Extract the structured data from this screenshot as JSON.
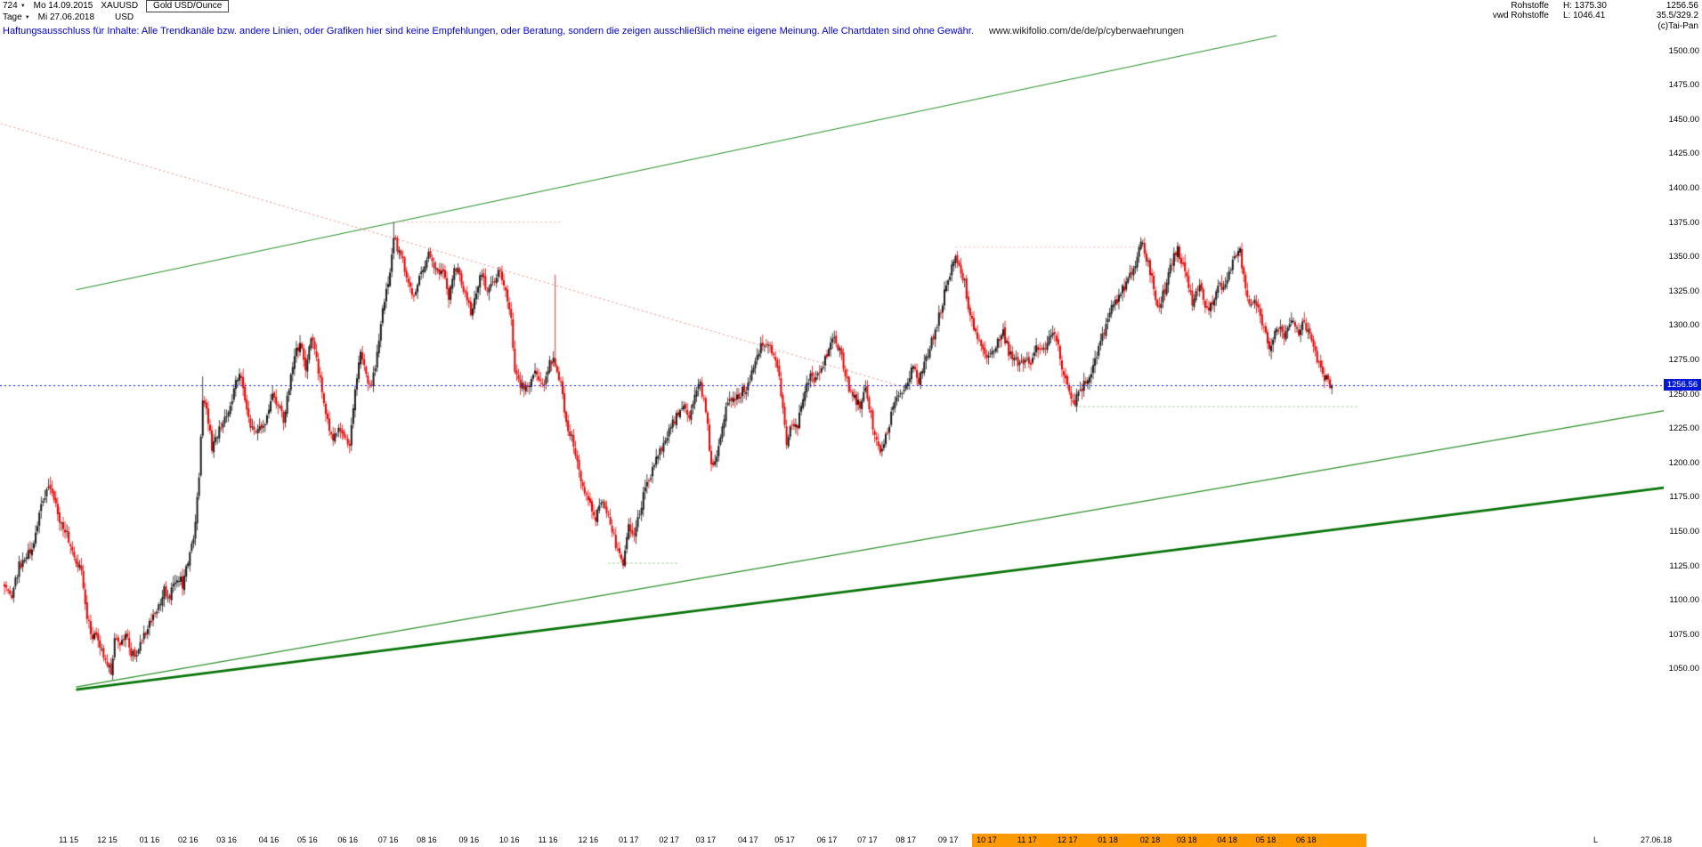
{
  "header": {
    "bar_count": "724",
    "start_date_label": "Mo 14.09.2015",
    "symbol": "XAUUSD",
    "instrument_name": "Gold USD/Ounce",
    "period": "Tage",
    "end_date_label": "Mi 27.06.2018",
    "currency": "USD",
    "category": "Rohstoffe",
    "feed": "vwd Rohstoffe",
    "high_label": "H: 1375.30",
    "low_label": "L: 1046.41",
    "last_price": "1256.56",
    "stat_right": "35.5/329.2",
    "copyright": "(c)Tai-Pan"
  },
  "disclaimer": {
    "text": "Haftungsausschluss für Inhalte: Alle Trendkanäle bzw. andere Linien, oder Grafiken hier sind keine Empfehlungen, oder Beratung, sondern die zeigen ausschließlich meine eigene Meinung. Alle Chartdaten sind ohne Gewähr.",
    "url": "www.wikifolio.com/de/de/p/cyberwaehrungen"
  },
  "axis": {
    "last_price_label": "1256.56",
    "end_marker": "L",
    "end_date": "27.06.18",
    "highlight_bars": [
      527,
      742
    ]
  },
  "chart_data": {
    "type": "candlestick",
    "title": "Gold USD/Ounce (XAUUSD), Tage",
    "x_axis_start": "14.09.2015",
    "x_axis_end": "27.06.2018",
    "bars": 724,
    "high": 1375.3,
    "low": 1046.41,
    "last": 1256.56,
    "ylim_axis": [
      1050,
      1500
    ],
    "price_ticks": [
      1500,
      1475,
      1450,
      1425,
      1400,
      1375,
      1350,
      1325,
      1300,
      1275,
      1250,
      1225,
      1200,
      1175,
      1150,
      1125,
      1100,
      1075,
      1050
    ],
    "months": [
      {
        "label": "11 15",
        "bar": 35
      },
      {
        "label": "12 15",
        "bar": 56
      },
      {
        "label": "01 16",
        "bar": 79
      },
      {
        "label": "02 16",
        "bar": 100
      },
      {
        "label": "03 16",
        "bar": 121
      },
      {
        "label": "04 16",
        "bar": 144
      },
      {
        "label": "05 16",
        "bar": 165
      },
      {
        "label": "06 16",
        "bar": 187
      },
      {
        "label": "07 16",
        "bar": 209
      },
      {
        "label": "08 16",
        "bar": 230
      },
      {
        "label": "09 16",
        "bar": 253
      },
      {
        "label": "10 16",
        "bar": 275
      },
      {
        "label": "11 16",
        "bar": 296
      },
      {
        "label": "12 16",
        "bar": 318
      },
      {
        "label": "01 17",
        "bar": 340
      },
      {
        "label": "02 17",
        "bar": 362
      },
      {
        "label": "03 17",
        "bar": 382
      },
      {
        "label": "04 17",
        "bar": 405
      },
      {
        "label": "05 17",
        "bar": 425
      },
      {
        "label": "06 17",
        "bar": 448
      },
      {
        "label": "07 17",
        "bar": 470
      },
      {
        "label": "08 17",
        "bar": 491
      },
      {
        "label": "09 17",
        "bar": 514
      },
      {
        "label": "10 17",
        "bar": 535
      },
      {
        "label": "11 17",
        "bar": 557
      },
      {
        "label": "12 17",
        "bar": 579
      },
      {
        "label": "01 18",
        "bar": 601
      },
      {
        "label": "02 18",
        "bar": 624
      },
      {
        "label": "03 18",
        "bar": 644
      },
      {
        "label": "04 18",
        "bar": 666
      },
      {
        "label": "05 18",
        "bar": 687
      },
      {
        "label": "06 18",
        "bar": 709
      }
    ],
    "anchors": [
      [
        0,
        1108
      ],
      [
        4,
        1103
      ],
      [
        8,
        1125
      ],
      [
        12,
        1132
      ],
      [
        16,
        1140
      ],
      [
        20,
        1168
      ],
      [
        24,
        1183
      ],
      [
        27,
        1176
      ],
      [
        30,
        1160
      ],
      [
        33,
        1152
      ],
      [
        36,
        1142
      ],
      [
        39,
        1130
      ],
      [
        42,
        1120
      ],
      [
        45,
        1086
      ],
      [
        48,
        1075
      ],
      [
        52,
        1068
      ],
      [
        55,
        1057
      ],
      [
        58,
        1048
      ],
      [
        60,
        1072
      ],
      [
        63,
        1068
      ],
      [
        66,
        1077
      ],
      [
        69,
        1062
      ],
      [
        72,
        1062
      ],
      [
        75,
        1072
      ],
      [
        78,
        1078
      ],
      [
        81,
        1090
      ],
      [
        84,
        1094
      ],
      [
        87,
        1108
      ],
      [
        90,
        1102
      ],
      [
        94,
        1118
      ],
      [
        97,
        1112
      ],
      [
        100,
        1128
      ],
      [
        103,
        1145
      ],
      [
        106,
        1190
      ],
      [
        108,
        1242
      ],
      [
        110,
        1239
      ],
      [
        113,
        1211
      ],
      [
        116,
        1222
      ],
      [
        119,
        1232
      ],
      [
        122,
        1240
      ],
      [
        125,
        1252
      ],
      [
        128,
        1268
      ],
      [
        131,
        1245
      ],
      [
        134,
        1226
      ],
      [
        137,
        1221
      ],
      [
        140,
        1228
      ],
      [
        143,
        1232
      ],
      [
        146,
        1250
      ],
      [
        149,
        1243
      ],
      [
        152,
        1230
      ],
      [
        155,
        1256
      ],
      [
        158,
        1278
      ],
      [
        161,
        1287
      ],
      [
        164,
        1270
      ],
      [
        167,
        1292
      ],
      [
        170,
        1274
      ],
      [
        173,
        1252
      ],
      [
        176,
        1229
      ],
      [
        179,
        1217
      ],
      [
        182,
        1224
      ],
      [
        185,
        1218
      ],
      [
        188,
        1213
      ],
      [
        191,
        1250
      ],
      [
        194,
        1280
      ],
      [
        197,
        1262
      ],
      [
        200,
        1258
      ],
      [
        203,
        1278
      ],
      [
        206,
        1315
      ],
      [
        209,
        1330
      ],
      [
        211,
        1352
      ],
      [
        212,
        1367
      ],
      [
        214,
        1356
      ],
      [
        217,
        1346
      ],
      [
        220,
        1330
      ],
      [
        223,
        1322
      ],
      [
        227,
        1340
      ],
      [
        231,
        1351
      ],
      [
        235,
        1342
      ],
      [
        239,
        1338
      ],
      [
        242,
        1321
      ],
      [
        245,
        1343
      ],
      [
        248,
        1338
      ],
      [
        251,
        1322
      ],
      [
        254,
        1310
      ],
      [
        257,
        1326
      ],
      [
        260,
        1340
      ],
      [
        263,
        1324
      ],
      [
        267,
        1333
      ],
      [
        270,
        1341
      ],
      [
        273,
        1327
      ],
      [
        276,
        1308
      ],
      [
        278,
        1266
      ],
      [
        281,
        1256
      ],
      [
        285,
        1252
      ],
      [
        289,
        1267
      ],
      [
        293,
        1255
      ],
      [
        297,
        1275
      ],
      [
        300,
        1273
      ],
      [
        303,
        1258
      ],
      [
        306,
        1227
      ],
      [
        310,
        1214
      ],
      [
        314,
        1189
      ],
      [
        318,
        1173
      ],
      [
        322,
        1160
      ],
      [
        326,
        1172
      ],
      [
        330,
        1158
      ],
      [
        334,
        1135
      ],
      [
        337,
        1128
      ],
      [
        340,
        1152
      ],
      [
        343,
        1151
      ],
      [
        346,
        1165
      ],
      [
        349,
        1181
      ],
      [
        353,
        1196
      ],
      [
        357,
        1210
      ],
      [
        360,
        1216
      ],
      [
        363,
        1225
      ],
      [
        366,
        1235
      ],
      [
        369,
        1241
      ],
      [
        373,
        1234
      ],
      [
        376,
        1251
      ],
      [
        379,
        1257
      ],
      [
        381,
        1246
      ],
      [
        383,
        1225
      ],
      [
        385,
        1198
      ],
      [
        388,
        1204
      ],
      [
        391,
        1229
      ],
      [
        394,
        1244
      ],
      [
        397,
        1247
      ],
      [
        401,
        1251
      ],
      [
        404,
        1254
      ],
      [
        407,
        1266
      ],
      [
        410,
        1280
      ],
      [
        413,
        1288
      ],
      [
        416,
        1286
      ],
      [
        419,
        1276
      ],
      [
        422,
        1262
      ],
      [
        424,
        1240
      ],
      [
        426,
        1214
      ],
      [
        429,
        1230
      ],
      [
        432,
        1228
      ],
      [
        435,
        1248
      ],
      [
        439,
        1263
      ],
      [
        442,
        1260
      ],
      [
        445,
        1267
      ],
      [
        448,
        1280
      ],
      [
        451,
        1294
      ],
      [
        454,
        1285
      ],
      [
        457,
        1272
      ],
      [
        460,
        1252
      ],
      [
        463,
        1246
      ],
      [
        466,
        1241
      ],
      [
        469,
        1252
      ],
      [
        471,
        1242
      ],
      [
        474,
        1220
      ],
      [
        477,
        1205
      ],
      [
        480,
        1220
      ],
      [
        483,
        1234
      ],
      [
        486,
        1245
      ],
      [
        489,
        1251
      ],
      [
        492,
        1260
      ],
      [
        495,
        1269
      ],
      [
        498,
        1258
      ],
      [
        501,
        1275
      ],
      [
        504,
        1284
      ],
      [
        507,
        1295
      ],
      [
        510,
        1312
      ],
      [
        513,
        1329
      ],
      [
        516,
        1344
      ],
      [
        518,
        1351
      ],
      [
        520,
        1342
      ],
      [
        523,
        1330
      ],
      [
        526,
        1308
      ],
      [
        529,
        1296
      ],
      [
        532,
        1288
      ],
      [
        535,
        1274
      ],
      [
        538,
        1278
      ],
      [
        541,
        1288
      ],
      [
        544,
        1295
      ],
      [
        547,
        1281
      ],
      [
        550,
        1276
      ],
      [
        553,
        1270
      ],
      [
        556,
        1278
      ],
      [
        559,
        1274
      ],
      [
        562,
        1283
      ],
      [
        565,
        1280
      ],
      [
        568,
        1289
      ],
      [
        571,
        1294
      ],
      [
        574,
        1284
      ],
      [
        576,
        1266
      ],
      [
        578,
        1262
      ],
      [
        580,
        1252
      ],
      [
        582,
        1242
      ],
      [
        585,
        1250
      ],
      [
        588,
        1257
      ],
      [
        591,
        1264
      ],
      [
        594,
        1274
      ],
      [
        597,
        1287
      ],
      [
        600,
        1300
      ],
      [
        603,
        1312
      ],
      [
        606,
        1318
      ],
      [
        609,
        1326
      ],
      [
        612,
        1334
      ],
      [
        615,
        1341
      ],
      [
        617,
        1352
      ],
      [
        619,
        1362
      ],
      [
        621,
        1355
      ],
      [
        623,
        1345
      ],
      [
        625,
        1333
      ],
      [
        627,
        1320
      ],
      [
        629,
        1314
      ],
      [
        631,
        1322
      ],
      [
        633,
        1330
      ],
      [
        635,
        1345
      ],
      [
        637,
        1350
      ],
      [
        639,
        1355
      ],
      [
        641,
        1346
      ],
      [
        643,
        1340
      ],
      [
        645,
        1328
      ],
      [
        647,
        1318
      ],
      [
        649,
        1324
      ],
      [
        651,
        1331
      ],
      [
        653,
        1318
      ],
      [
        655,
        1310
      ],
      [
        657,
        1314
      ],
      [
        659,
        1322
      ],
      [
        661,
        1332
      ],
      [
        663,
        1327
      ],
      [
        665,
        1333
      ],
      [
        667,
        1340
      ],
      [
        669,
        1346
      ],
      [
        671,
        1352
      ],
      [
        673,
        1354
      ],
      [
        675,
        1336
      ],
      [
        677,
        1322
      ],
      [
        679,
        1314
      ],
      [
        681,
        1318
      ],
      [
        683,
        1310
      ],
      [
        685,
        1303
      ],
      [
        687,
        1293
      ],
      [
        689,
        1284
      ],
      [
        691,
        1292
      ],
      [
        693,
        1298
      ],
      [
        695,
        1301
      ],
      [
        697,
        1293
      ],
      [
        699,
        1296
      ],
      [
        701,
        1302
      ],
      [
        703,
        1298
      ],
      [
        705,
        1295
      ],
      [
        707,
        1301
      ],
      [
        709,
        1298
      ],
      [
        711,
        1294
      ],
      [
        713,
        1283
      ],
      [
        715,
        1274
      ],
      [
        717,
        1268
      ],
      [
        719,
        1263
      ],
      [
        721,
        1259
      ],
      [
        723,
        1256.56
      ]
    ],
    "spikes": [
      {
        "i": 58,
        "low": 1046.41
      },
      {
        "i": 108,
        "high": 1263
      },
      {
        "i": 212,
        "high": 1375.3
      },
      {
        "i": 300,
        "high": 1337
      }
    ],
    "trendlines": [
      {
        "name": "upper-channel-line",
        "color": "#2d8f2d",
        "width": 1.2,
        "p1": [
          39,
          1326
        ],
        "p2": [
          693,
          1511
        ]
      },
      {
        "name": "lower-support-thin",
        "color": "#2d8f2d",
        "width": 1.2,
        "p1": [
          39,
          1037
        ],
        "p2": [
          904,
          1238
        ]
      },
      {
        "name": "lower-support-thick",
        "color": "#067306",
        "width": 2.6,
        "p1": [
          39,
          1035
        ],
        "p2": [
          904,
          1182
        ]
      },
      {
        "name": "declining-resistance-dotted",
        "color": "#ee8888",
        "width": 1,
        "dash": [
          2,
          3
        ],
        "p1": [
          -2,
          1447
        ],
        "p2": [
          493,
          1254
        ]
      },
      {
        "name": "high-1375-dotted",
        "color": "#f2b3b3",
        "width": 1,
        "dash": [
          2,
          3
        ],
        "p1": [
          212,
          1375.3
        ],
        "p2": [
          303,
          1375.3
        ]
      },
      {
        "name": "high-1357-dotted",
        "color": "#f2b3b3",
        "width": 1,
        "dash": [
          2,
          3
        ],
        "p1": [
          518,
          1357
        ],
        "p2": [
          618,
          1357
        ]
      },
      {
        "name": "low-1127-dotted",
        "color": "#79c379",
        "width": 1,
        "dash": [
          2,
          3
        ],
        "p1": [
          329,
          1127
        ],
        "p2": [
          367,
          1127
        ]
      },
      {
        "name": "low-1241-dotted",
        "color": "#79c379",
        "width": 1,
        "dash": [
          2,
          3
        ],
        "p1": [
          583,
          1241
        ],
        "p2": [
          737,
          1241
        ]
      }
    ],
    "last_price_line": {
      "value": 1256.56,
      "color": "#0011ee",
      "dash": [
        2,
        3
      ]
    },
    "colors": {
      "up": "#1b1b1b",
      "down": "#e60000",
      "highlight": "#ff9900",
      "badge": "#0018d8",
      "disclaimer": "#0000cc"
    },
    "seed": 42
  }
}
